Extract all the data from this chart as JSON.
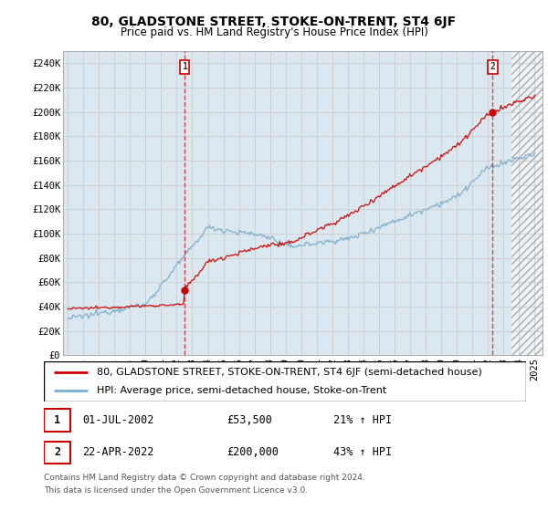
{
  "title": "80, GLADSTONE STREET, STOKE-ON-TRENT, ST4 6JF",
  "subtitle": "Price paid vs. HM Land Registry's House Price Index (HPI)",
  "ylim": [
    0,
    250000
  ],
  "yticks": [
    0,
    20000,
    40000,
    60000,
    80000,
    100000,
    120000,
    140000,
    160000,
    180000,
    200000,
    220000,
    240000
  ],
  "ytick_labels": [
    "£0",
    "£20K",
    "£40K",
    "£60K",
    "£80K",
    "£100K",
    "£120K",
    "£140K",
    "£160K",
    "£180K",
    "£200K",
    "£220K",
    "£240K"
  ],
  "xlim_start": 1994.7,
  "xlim_end": 2025.5,
  "hatch_start": 2023.5,
  "sale1_date": "01-JUL-2002",
  "sale1_x": 2002.5,
  "sale1_price": 53500,
  "sale2_date": "22-APR-2022",
  "sale2_x": 2022.3,
  "sale2_price": 200000,
  "sale1_pct": "21% ↑ HPI",
  "sale2_pct": "43% ↑ HPI",
  "red_line_color": "#cc0000",
  "blue_line_color": "#7aaccc",
  "grid_color": "#cccccc",
  "bg_color": "#dce8f0",
  "legend_line1": "80, GLADSTONE STREET, STOKE-ON-TRENT, ST4 6JF (semi-detached house)",
  "legend_line2": "HPI: Average price, semi-detached house, Stoke-on-Trent",
  "footnote1": "Contains HM Land Registry data © Crown copyright and database right 2024.",
  "footnote2": "This data is licensed under the Open Government Licence v3.0.",
  "title_fontsize": 10,
  "subtitle_fontsize": 8.5,
  "tick_fontsize": 7.5,
  "legend_fontsize": 8,
  "info_fontsize": 8.5
}
